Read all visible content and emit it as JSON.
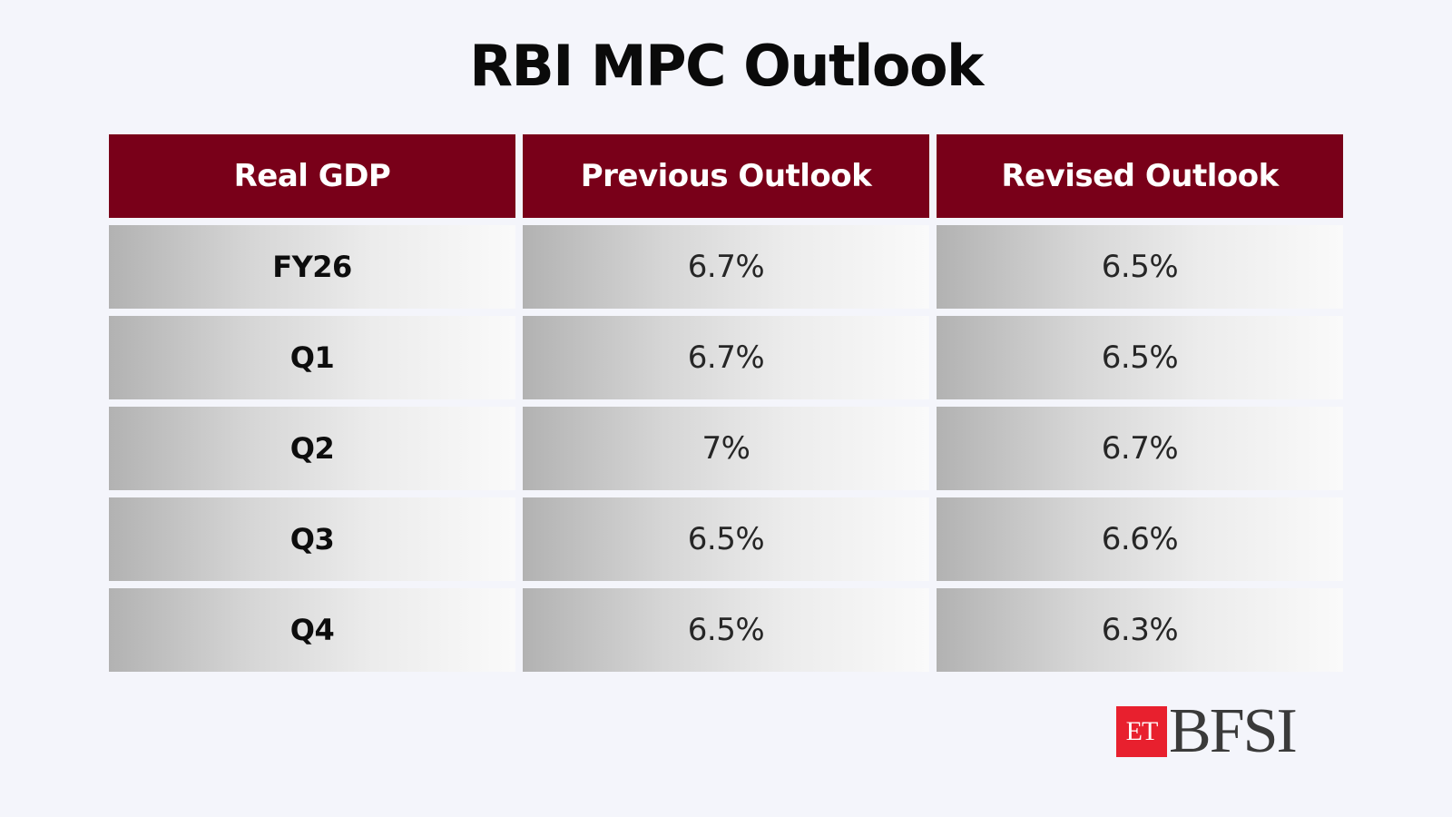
{
  "chart_data": {
    "type": "table",
    "title": "RBI MPC Outlook",
    "columns": [
      "Real GDP",
      "Previous Outlook",
      "Revised Outlook"
    ],
    "rows": [
      {
        "period": "FY26",
        "previous": "6.7%",
        "revised": "6.5%"
      },
      {
        "period": "Q1",
        "previous": "6.7%",
        "revised": "6.5%"
      },
      {
        "period": "Q2",
        "previous": "7%",
        "revised": "6.7%"
      },
      {
        "period": "Q3",
        "previous": "6.5%",
        "revised": "6.6%"
      },
      {
        "period": "Q4",
        "previous": "6.5%",
        "revised": "6.3%"
      }
    ]
  },
  "logo": {
    "prefix": "ET",
    "name": "BFSI"
  },
  "colors": {
    "header_bg": "#790019",
    "logo_red": "#e8202e",
    "page_bg": "#f4f5fb"
  }
}
